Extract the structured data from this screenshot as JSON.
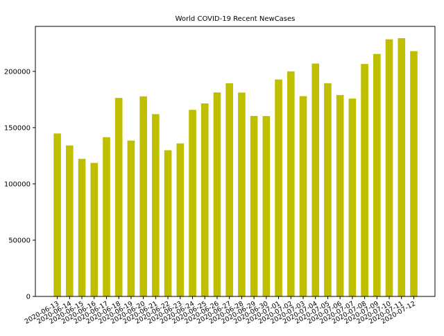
{
  "chart_data": {
    "type": "bar",
    "title": "World COVID-19 Recent NewCases",
    "xlabel": "",
    "ylabel": "",
    "bar_color": "#bfbf00",
    "grid": false,
    "legend": "none",
    "ylim": [
      0,
      240000
    ],
    "yticks": [
      0,
      50000,
      100000,
      150000,
      200000
    ],
    "ytick_labels": [
      "0",
      "50000",
      "100000",
      "150000",
      "200000"
    ],
    "categories": [
      "2020-06-13",
      "2020-06-14",
      "2020-06-15",
      "2020-06-16",
      "2020-06-17",
      "2020-06-18",
      "2020-06-19",
      "2020-06-20",
      "2020-06-21",
      "2020-06-22",
      "2020-06-23",
      "2020-06-24",
      "2020-06-25",
      "2020-06-26",
      "2020-06-27",
      "2020-06-28",
      "2020-06-29",
      "2020-06-30",
      "2020-07-01",
      "2020-07-02",
      "2020-07-03",
      "2020-07-04",
      "2020-07-05",
      "2020-07-06",
      "2020-07-07",
      "2020-07-08",
      "2020-07-09",
      "2020-07-10",
      "2020-07-11",
      "2020-07-12"
    ],
    "values": [
      144800,
      134200,
      122300,
      118700,
      141500,
      176400,
      138500,
      177800,
      162000,
      129900,
      136000,
      165800,
      171500,
      181300,
      189500,
      181200,
      160400,
      160300,
      192800,
      200000,
      178000,
      207000,
      189500,
      179000,
      175800,
      206600,
      215500,
      228500,
      229500,
      218000
    ]
  }
}
